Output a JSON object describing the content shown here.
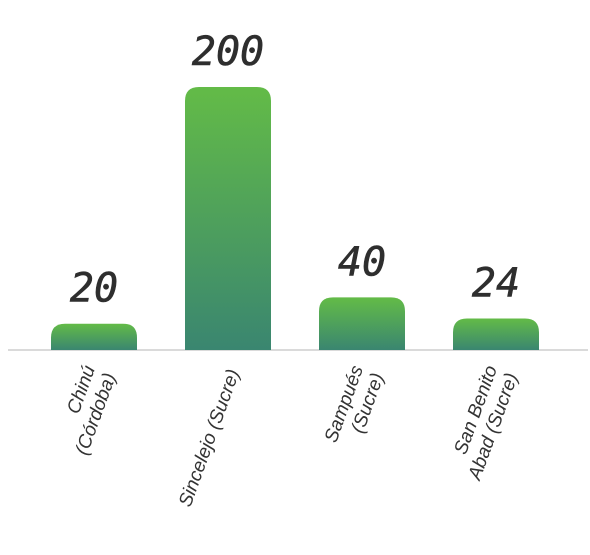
{
  "chart_data": {
    "type": "bar",
    "categories": [
      [
        "Chinú",
        "(Córdoba)"
      ],
      [
        "Sincelejo (Sucre)"
      ],
      [
        "Sampués",
        "(Sucre)"
      ],
      [
        "San Benito",
        "Abad (Sucre)"
      ]
    ],
    "values": [
      20,
      200,
      40,
      24
    ],
    "ylim": [
      0,
      200
    ],
    "grid": false,
    "legend": "none",
    "colors": {
      "bar_top": "#63bb47",
      "bar_bottom": "#3a8670",
      "axis": "#b5b5b5",
      "text": "#333333"
    }
  }
}
